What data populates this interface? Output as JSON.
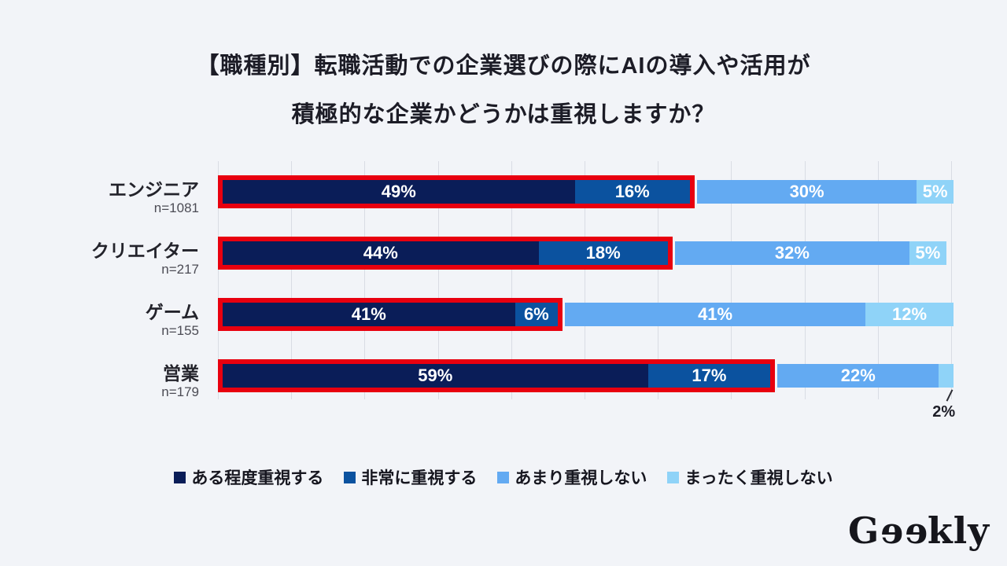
{
  "title": {
    "line1": "【職種別】転職活動での企業選びの際にAIの導入や活用が",
    "line2": "積極的な企業かどうかは重視しますか？"
  },
  "chart_data": {
    "type": "bar",
    "stacked": true,
    "orientation": "horizontal",
    "unit": "%",
    "xlim": [
      0,
      100
    ],
    "gridlines": {
      "show": true,
      "interval_pct": 10
    },
    "categories": [
      "エンジニア",
      "クリエイター",
      "ゲーム",
      "営業"
    ],
    "sample_sizes": [
      "n=1081",
      "n=217",
      "n=155",
      "n=179"
    ],
    "series": [
      {
        "name": "ある程度重視する",
        "color": "#0a1d58",
        "values": [
          49,
          44,
          41,
          59
        ]
      },
      {
        "name": "非常に重視する",
        "color": "#0b529f",
        "values": [
          16,
          18,
          6,
          17
        ]
      },
      {
        "name": "あまり重視しない",
        "color": "#63aaf2",
        "values": [
          30,
          32,
          41,
          22
        ]
      },
      {
        "name": "まったく重視しない",
        "color": "#8fd3f8",
        "values": [
          5,
          5,
          12,
          2
        ]
      }
    ],
    "highlight_outline": {
      "color": "#e8000f",
      "spans_series": [
        "ある程度重視する",
        "非常に重視する"
      ]
    },
    "callout": {
      "category_index": 3,
      "series_index": 3,
      "label": "2%"
    },
    "legend_position": "bottom"
  },
  "logo": {
    "text": "Geekly"
  },
  "colors": {
    "background": "#f2f4f8",
    "gridline": "#d9dce4",
    "highlight": "#e8000f",
    "title_text": "#1c1c26",
    "muted_text": "#4c4c55",
    "bar_label_text": "#ffffff"
  }
}
